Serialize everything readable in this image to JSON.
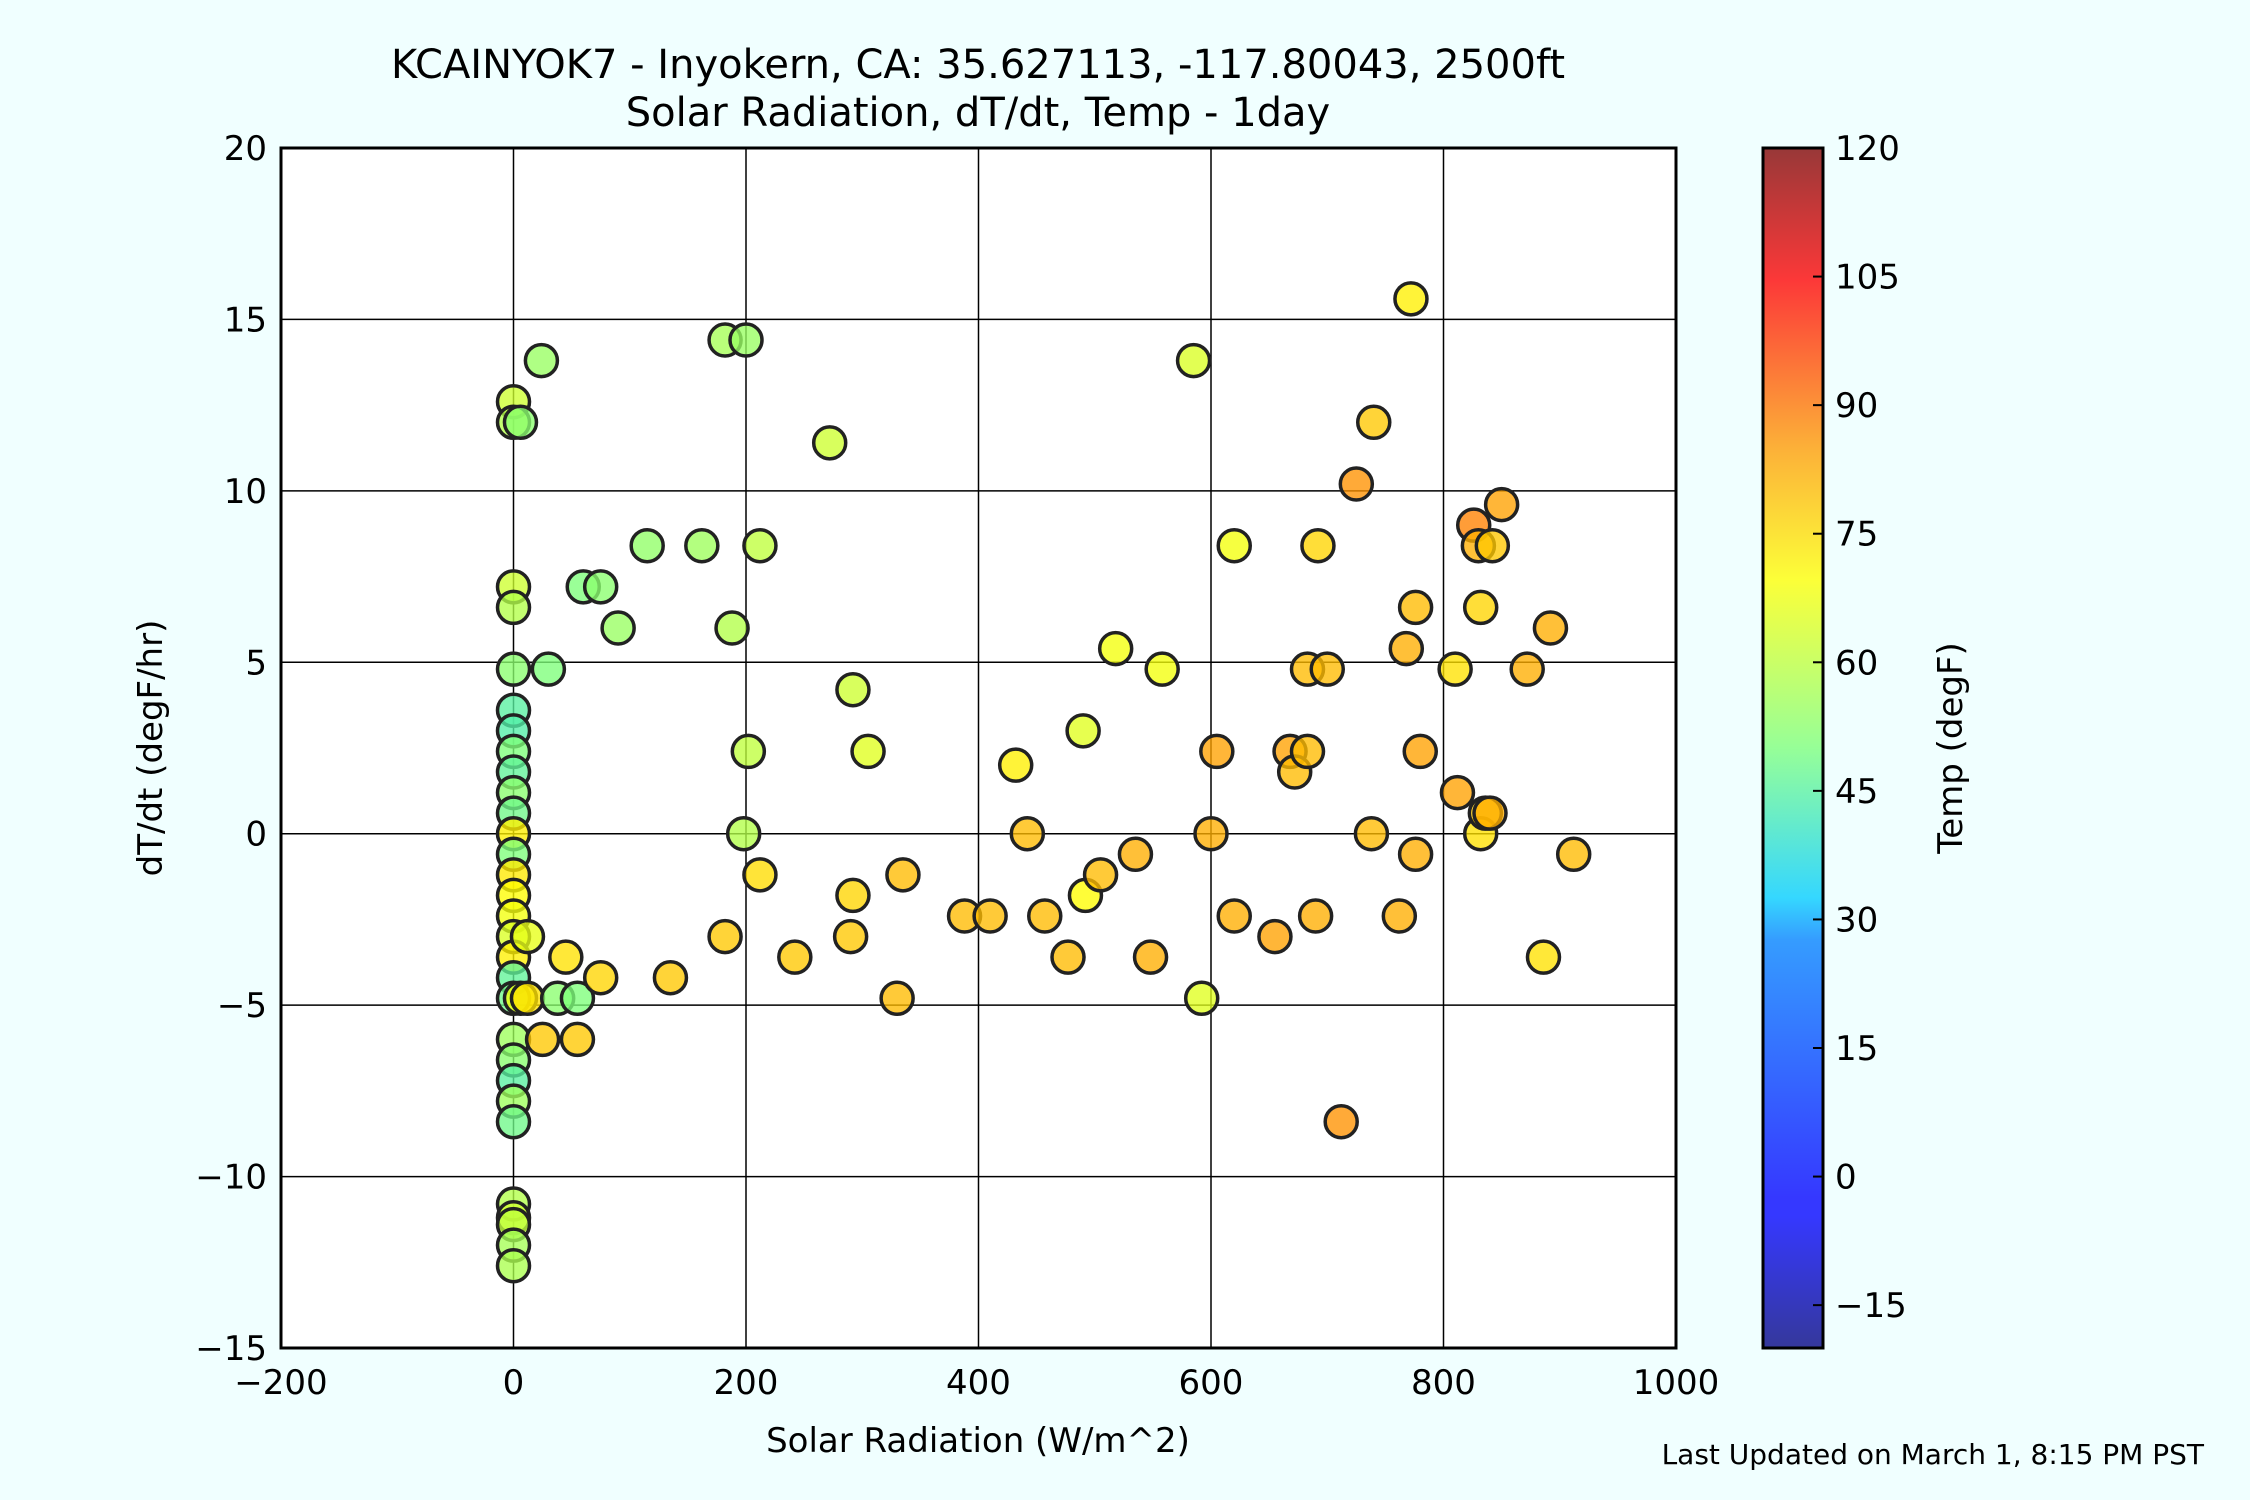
{
  "chart_data": {
    "type": "scatter",
    "title": "KCAINYOK7 - Inyokern, CA: 35.627113, -117.80043, 2500ft",
    "subtitle": "Solar Radiation, dT/dt, Temp - 1day",
    "xlabel": "Solar Radiation (W/m^2)",
    "ylabel": "dT/dt (degF/hr)",
    "xlim": [
      -200,
      1000
    ],
    "ylim": [
      -15,
      20
    ],
    "xticks": [
      -200,
      0,
      200,
      400,
      600,
      800,
      1000
    ],
    "yticks": [
      -15,
      -10,
      -5,
      0,
      5,
      10,
      15,
      20
    ],
    "grid": true,
    "colorbar": {
      "label": "Temp (degF)",
      "range": [
        -20,
        120
      ],
      "ticks": [
        -15,
        0,
        15,
        30,
        45,
        60,
        75,
        90,
        105,
        120
      ]
    },
    "points": [
      {
        "x": 0,
        "y": 12.6,
        "t": 62
      },
      {
        "x": 0,
        "y": 12.0,
        "t": 58
      },
      {
        "x": 6,
        "y": 12.0,
        "t": 52
      },
      {
        "x": 24,
        "y": 13.8,
        "t": 54
      },
      {
        "x": 0,
        "y": 7.2,
        "t": 62
      },
      {
        "x": 0,
        "y": 6.6,
        "t": 58
      },
      {
        "x": 0,
        "y": 4.8,
        "t": 52
      },
      {
        "x": 30,
        "y": 4.8,
        "t": 50
      },
      {
        "x": 0,
        "y": 3.6,
        "t": 45
      },
      {
        "x": 0,
        "y": 3.0,
        "t": 44
      },
      {
        "x": 0,
        "y": 2.4,
        "t": 50
      },
      {
        "x": 0,
        "y": 1.8,
        "t": 46
      },
      {
        "x": 0,
        "y": 1.2,
        "t": 52
      },
      {
        "x": 0,
        "y": 0.6,
        "t": 48
      },
      {
        "x": 0,
        "y": 0,
        "t": 72
      },
      {
        "x": 0,
        "y": -0.6,
        "t": 50
      },
      {
        "x": 0,
        "y": -1.2,
        "t": 73
      },
      {
        "x": 0,
        "y": -1.8,
        "t": 70
      },
      {
        "x": 0,
        "y": -2.4,
        "t": 68
      },
      {
        "x": 0,
        "y": -3.0,
        "t": 64
      },
      {
        "x": 0,
        "y": -3.6,
        "t": 72
      },
      {
        "x": 12,
        "y": -3.0,
        "t": 66
      },
      {
        "x": 0,
        "y": -4.2,
        "t": 46
      },
      {
        "x": 0,
        "y": -4.8,
        "t": 48
      },
      {
        "x": 6,
        "y": -4.8,
        "t": 68
      },
      {
        "x": 12,
        "y": -4.8,
        "t": 74
      },
      {
        "x": 0,
        "y": -6.0,
        "t": 55
      },
      {
        "x": 0,
        "y": -6.6,
        "t": 52
      },
      {
        "x": 0,
        "y": -7.2,
        "t": 45
      },
      {
        "x": 0,
        "y": -7.8,
        "t": 55
      },
      {
        "x": 0,
        "y": -8.4,
        "t": 48
      },
      {
        "x": 0,
        "y": -10.8,
        "t": 58
      },
      {
        "x": 0,
        "y": -11.2,
        "t": 62
      },
      {
        "x": 0,
        "y": -11.4,
        "t": 60
      },
      {
        "x": 0,
        "y": -12.0,
        "t": 56
      },
      {
        "x": 0,
        "y": -12.6,
        "t": 57
      },
      {
        "x": 38,
        "y": -4.8,
        "t": 52
      },
      {
        "x": 55,
        "y": -4.8,
        "t": 50
      },
      {
        "x": 45,
        "y": -3.6,
        "t": 74
      },
      {
        "x": 75,
        "y": -4.2,
        "t": 76
      },
      {
        "x": 25,
        "y": -6.0,
        "t": 78
      },
      {
        "x": 55,
        "y": -6.0,
        "t": 78
      },
      {
        "x": 60,
        "y": 7.2,
        "t": 50
      },
      {
        "x": 75,
        "y": 7.2,
        "t": 52
      },
      {
        "x": 90,
        "y": 6.0,
        "t": 54
      },
      {
        "x": 115,
        "y": 8.4,
        "t": 53
      },
      {
        "x": 162,
        "y": 8.4,
        "t": 55
      },
      {
        "x": 182,
        "y": 14.4,
        "t": 56
      },
      {
        "x": 200,
        "y": 14.4,
        "t": 54
      },
      {
        "x": 188,
        "y": 6.0,
        "t": 58
      },
      {
        "x": 212,
        "y": 8.4,
        "t": 60
      },
      {
        "x": 202,
        "y": 2.4,
        "t": 60
      },
      {
        "x": 198,
        "y": 0,
        "t": 58
      },
      {
        "x": 212,
        "y": -1.2,
        "t": 75
      },
      {
        "x": 135,
        "y": -4.2,
        "t": 78
      },
      {
        "x": 182,
        "y": -3.0,
        "t": 78
      },
      {
        "x": 242,
        "y": -3.6,
        "t": 78
      },
      {
        "x": 272,
        "y": 11.4,
        "t": 62
      },
      {
        "x": 292,
        "y": 4.2,
        "t": 62
      },
      {
        "x": 305,
        "y": 2.4,
        "t": 65
      },
      {
        "x": 292,
        "y": -1.8,
        "t": 76
      },
      {
        "x": 290,
        "y": -3.0,
        "t": 78
      },
      {
        "x": 335,
        "y": -1.2,
        "t": 80
      },
      {
        "x": 330,
        "y": -4.8,
        "t": 80
      },
      {
        "x": 388,
        "y": -2.4,
        "t": 80
      },
      {
        "x": 410,
        "y": -2.4,
        "t": 80
      },
      {
        "x": 432,
        "y": 2.0,
        "t": 72
      },
      {
        "x": 442,
        "y": 0,
        "t": 80
      },
      {
        "x": 457,
        "y": -2.4,
        "t": 80
      },
      {
        "x": 477,
        "y": -3.6,
        "t": 80
      },
      {
        "x": 492,
        "y": -1.8,
        "t": 70
      },
      {
        "x": 505,
        "y": -1.2,
        "t": 80
      },
      {
        "x": 490,
        "y": 3.0,
        "t": 65
      },
      {
        "x": 518,
        "y": 5.4,
        "t": 68
      },
      {
        "x": 535,
        "y": -0.6,
        "t": 82
      },
      {
        "x": 548,
        "y": -3.6,
        "t": 82
      },
      {
        "x": 558,
        "y": 4.8,
        "t": 68
      },
      {
        "x": 585,
        "y": 13.8,
        "t": 64
      },
      {
        "x": 592,
        "y": -4.8,
        "t": 65
      },
      {
        "x": 600,
        "y": 0,
        "t": 82
      },
      {
        "x": 605,
        "y": 2.4,
        "t": 84
      },
      {
        "x": 620,
        "y": 8.4,
        "t": 68
      },
      {
        "x": 620,
        "y": -2.4,
        "t": 82
      },
      {
        "x": 655,
        "y": -3.0,
        "t": 84
      },
      {
        "x": 668,
        "y": 2.4,
        "t": 84
      },
      {
        "x": 672,
        "y": 1.8,
        "t": 80
      },
      {
        "x": 683,
        "y": 2.4,
        "t": 80
      },
      {
        "x": 683,
        "y": 4.8,
        "t": 80
      },
      {
        "x": 692,
        "y": 8.4,
        "t": 76
      },
      {
        "x": 690,
        "y": -2.4,
        "t": 82
      },
      {
        "x": 700,
        "y": 4.8,
        "t": 80
      },
      {
        "x": 712,
        "y": -8.4,
        "t": 86
      },
      {
        "x": 725,
        "y": 10.2,
        "t": 86
      },
      {
        "x": 738,
        "y": 0,
        "t": 80
      },
      {
        "x": 740,
        "y": 12.0,
        "t": 78
      },
      {
        "x": 762,
        "y": -2.4,
        "t": 82
      },
      {
        "x": 768,
        "y": 5.4,
        "t": 82
      },
      {
        "x": 772,
        "y": 15.6,
        "t": 72
      },
      {
        "x": 776,
        "y": 6.6,
        "t": 80
      },
      {
        "x": 776,
        "y": -0.6,
        "t": 82
      },
      {
        "x": 780,
        "y": 2.4,
        "t": 84
      },
      {
        "x": 810,
        "y": 4.8,
        "t": 74
      },
      {
        "x": 812,
        "y": 1.2,
        "t": 84
      },
      {
        "x": 826,
        "y": 9.0,
        "t": 88
      },
      {
        "x": 830,
        "y": 8.4,
        "t": 82
      },
      {
        "x": 832,
        "y": 6.6,
        "t": 76
      },
      {
        "x": 832,
        "y": 0,
        "t": 74
      },
      {
        "x": 836,
        "y": 0.6,
        "t": 78
      },
      {
        "x": 840,
        "y": 0.6,
        "t": 82
      },
      {
        "x": 842,
        "y": 8.4,
        "t": 78
      },
      {
        "x": 850,
        "y": 9.6,
        "t": 84
      },
      {
        "x": 872,
        "y": 4.8,
        "t": 82
      },
      {
        "x": 886,
        "y": -3.6,
        "t": 74
      },
      {
        "x": 892,
        "y": 6.0,
        "t": 82
      },
      {
        "x": 912,
        "y": -0.6,
        "t": 80
      }
    ]
  },
  "footer": {
    "updated": "Last Updated on March 1, 8:15 PM PST"
  }
}
